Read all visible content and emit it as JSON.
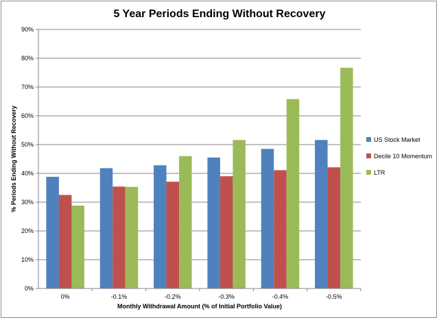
{
  "chart_data": {
    "type": "bar",
    "title": "5 Year Periods Ending Without Recovery",
    "xlabel": "Monthly Withdrawal Amount (% of Initial Portfolio Value)",
    "ylabel": "% Periods Ending Without Recovery",
    "categories": [
      "0%",
      "-0.1%",
      "-0.2%",
      "-0.3%",
      "-0.4%",
      "-0.5%"
    ],
    "ylim": [
      0,
      90
    ],
    "yticks": [
      "0%",
      "10%",
      "20%",
      "30%",
      "40%",
      "50%",
      "60%",
      "70%",
      "80%",
      "90%"
    ],
    "grid": true,
    "legend_position": "right",
    "series": [
      {
        "name": "US Stock Market",
        "color": "#4f81bd",
        "values": [
          38.8,
          41.8,
          42.8,
          45.5,
          48.5,
          51.6
        ]
      },
      {
        "name": "Decile 10 Momentum",
        "color": "#c0504d",
        "values": [
          32.5,
          35.4,
          37.1,
          39.0,
          41.1,
          42.1
        ]
      },
      {
        "name": "LTR",
        "color": "#9bbb59",
        "values": [
          28.8,
          35.3,
          46.0,
          51.6,
          65.8,
          76.7
        ]
      }
    ]
  }
}
